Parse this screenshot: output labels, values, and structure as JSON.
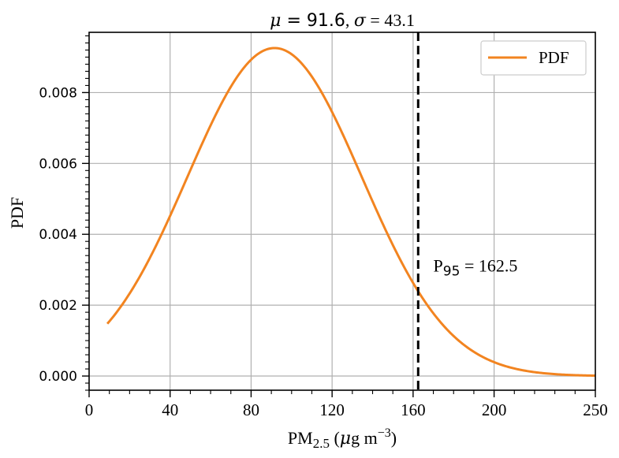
{
  "chart_data": {
    "type": "line",
    "title": {
      "mu_symbol": "μ",
      "mu_text": " = 91.6",
      "sep": ", ",
      "sigma_symbol": "σ",
      "sigma_text": " = 43.1"
    },
    "xlabel": {
      "main": "PM",
      "sub": "2.5",
      "paren_open": " (",
      "mu": "μ",
      "unit": "g m",
      "sup": "−3",
      "paren_close": ")"
    },
    "ylabel": "PDF",
    "xlim": [
      0,
      250
    ],
    "ylim": [
      -0.0004,
      0.0097
    ],
    "x_ticks": [
      0,
      40,
      80,
      120,
      160,
      200,
      250
    ],
    "x_tick_labels": [
      "0",
      "40",
      "80",
      "120",
      "160",
      "200",
      "250"
    ],
    "y_ticks": [
      0.0,
      0.002,
      0.004,
      0.006,
      0.008
    ],
    "y_tick_labels": [
      "0.000",
      "0.002",
      "0.004",
      "0.006",
      "0.008"
    ],
    "grid": true,
    "legend": {
      "position": "top-right",
      "entries": [
        "PDF"
      ]
    },
    "series": [
      {
        "name": "PDF",
        "color": "#f28420",
        "distribution": "normal",
        "mean": 91.6,
        "std": 43.1,
        "x_range": [
          9,
          250
        ]
      }
    ],
    "vline": {
      "x": 162.5,
      "color": "#000000",
      "style": "dashed"
    },
    "annotation": {
      "p": "P",
      "sub": "95",
      "text": " = 162.5",
      "x": 170,
      "y": 0.0031
    }
  }
}
